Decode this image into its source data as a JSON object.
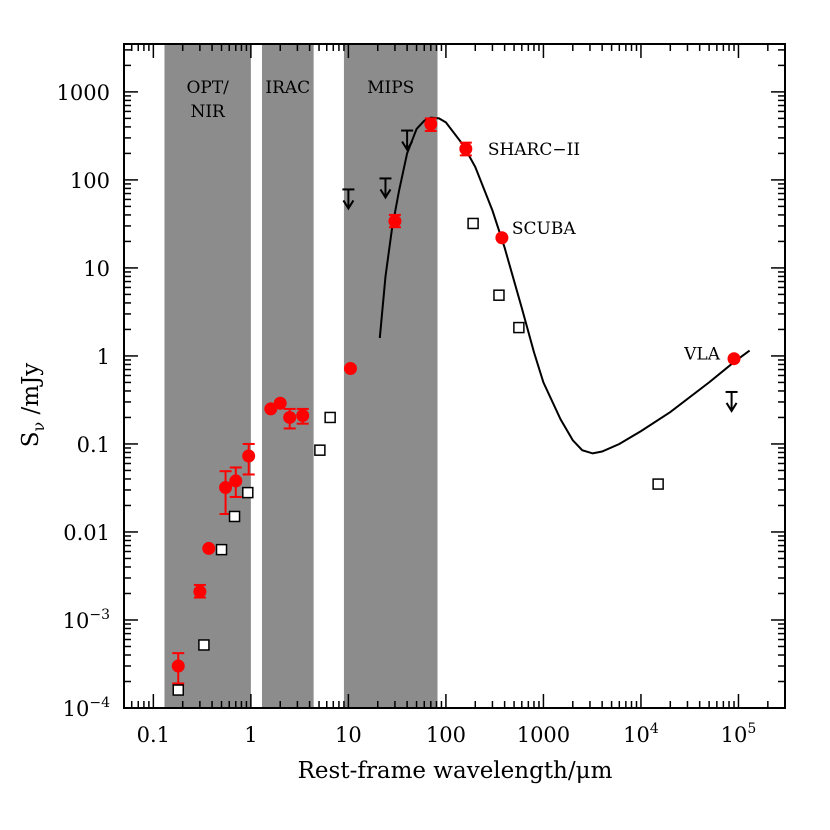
{
  "chart_data": {
    "type": "scatter",
    "x_scale": "log",
    "y_scale": "log",
    "xlim": [
      0.05,
      300000
    ],
    "ylim": [
      0.0001,
      3500
    ],
    "xlabel": "Rest-frame wavelength/μm",
    "ylabel_main": "S",
    "ylabel_sub": "ν",
    "ylabel_rest": " /mJy",
    "x_ticks": [
      {
        "value": 0.1,
        "label": "0.1"
      },
      {
        "value": 1,
        "label": "1"
      },
      {
        "value": 10,
        "label": "10"
      },
      {
        "value": 100,
        "label": "100"
      },
      {
        "value": 1000,
        "label": "1000"
      },
      {
        "value": 10000,
        "base": "10",
        "exp": "4"
      },
      {
        "value": 100000,
        "base": "10",
        "exp": "5"
      }
    ],
    "y_ticks": [
      {
        "value": 0.0001,
        "base": "10",
        "exp": "−4"
      },
      {
        "value": 0.001,
        "base": "10",
        "exp": "−3"
      },
      {
        "value": 0.01,
        "label": "0.01"
      },
      {
        "value": 0.1,
        "label": "0.1"
      },
      {
        "value": 1,
        "label": "1"
      },
      {
        "value": 10,
        "label": "10"
      },
      {
        "value": 100,
        "label": "100"
      },
      {
        "value": 1000,
        "label": "1000"
      }
    ],
    "bands": [
      {
        "label_lines": [
          "OPT/",
          "NIR"
        ],
        "x_from": 0.13,
        "x_to": 1.0
      },
      {
        "label_lines": [
          "IRAC"
        ],
        "x_from": 1.3,
        "x_to": 4.4
      },
      {
        "label_lines": [
          "MIPS"
        ],
        "x_from": 9.0,
        "x_to": 82
      }
    ],
    "band_color": "#8c8c8c",
    "series": [
      {
        "marker": "filled-circle",
        "color": "#ff0000",
        "points": [
          {
            "x": 0.18,
            "y": 0.0003,
            "lo": 0.00019,
            "hi": 0.00042
          },
          {
            "x": 0.3,
            "y": 0.0021,
            "lo": 0.0018,
            "hi": 0.0025
          },
          {
            "x": 0.37,
            "y": 0.0065
          },
          {
            "x": 0.55,
            "y": 0.032,
            "lo": 0.016,
            "hi": 0.049
          },
          {
            "x": 0.7,
            "y": 0.038,
            "lo": 0.025,
            "hi": 0.054
          },
          {
            "x": 0.95,
            "y": 0.073,
            "lo": 0.045,
            "hi": 0.1
          },
          {
            "x": 1.6,
            "y": 0.25
          },
          {
            "x": 2.0,
            "y": 0.29
          },
          {
            "x": 2.5,
            "y": 0.2,
            "lo": 0.15,
            "hi": 0.25
          },
          {
            "x": 3.4,
            "y": 0.21,
            "lo": 0.17,
            "hi": 0.25
          },
          {
            "x": 10.5,
            "y": 0.72
          },
          {
            "x": 30,
            "y": 34,
            "lo": 29,
            "hi": 40
          },
          {
            "x": 70,
            "y": 430,
            "lo": 360,
            "hi": 500
          },
          {
            "x": 160,
            "y": 225,
            "lo": 190,
            "hi": 265
          },
          {
            "x": 375,
            "y": 22
          },
          {
            "x": 90000,
            "y": 0.93
          }
        ]
      },
      {
        "marker": "open-square",
        "color": "#000000",
        "points": [
          {
            "x": 0.18,
            "y": 0.00016
          },
          {
            "x": 0.33,
            "y": 0.00052
          },
          {
            "x": 0.5,
            "y": 0.0063
          },
          {
            "x": 0.68,
            "y": 0.015
          },
          {
            "x": 0.93,
            "y": 0.028
          },
          {
            "x": 5.1,
            "y": 0.085
          },
          {
            "x": 6.5,
            "y": 0.2
          },
          {
            "x": 190,
            "y": 32
          },
          {
            "x": 350,
            "y": 4.9
          },
          {
            "x": 560,
            "y": 2.1
          },
          {
            "x": 15000,
            "y": 0.035
          }
        ]
      },
      {
        "marker": "upper-limit-arrow",
        "color": "#000000",
        "points": [
          {
            "x": 10,
            "y": 60
          },
          {
            "x": 24,
            "y": 80
          },
          {
            "x": 40,
            "y": 280
          },
          {
            "x": 85000,
            "y": 0.3
          }
        ]
      }
    ],
    "model_curve": [
      {
        "x": 21,
        "y": 1.6
      },
      {
        "x": 24,
        "y": 8
      },
      {
        "x": 28,
        "y": 28
      },
      {
        "x": 33,
        "y": 75
      },
      {
        "x": 40,
        "y": 200
      },
      {
        "x": 50,
        "y": 380
      },
      {
        "x": 60,
        "y": 470
      },
      {
        "x": 70,
        "y": 510
      },
      {
        "x": 85,
        "y": 500
      },
      {
        "x": 100,
        "y": 450
      },
      {
        "x": 150,
        "y": 250
      },
      {
        "x": 200,
        "y": 140
      },
      {
        "x": 300,
        "y": 45
      },
      {
        "x": 400,
        "y": 17
      },
      {
        "x": 600,
        "y": 3.5
      },
      {
        "x": 800,
        "y": 1.1
      },
      {
        "x": 1000,
        "y": 0.5
      },
      {
        "x": 1500,
        "y": 0.19
      },
      {
        "x": 2000,
        "y": 0.11
      },
      {
        "x": 2500,
        "y": 0.085
      },
      {
        "x": 3200,
        "y": 0.078
      },
      {
        "x": 4000,
        "y": 0.082
      },
      {
        "x": 6000,
        "y": 0.1
      },
      {
        "x": 10000,
        "y": 0.14
      },
      {
        "x": 20000,
        "y": 0.23
      },
      {
        "x": 50000,
        "y": 0.5
      },
      {
        "x": 90000,
        "y": 0.85
      },
      {
        "x": 130000,
        "y": 1.15
      }
    ],
    "annotations": [
      {
        "text": "SHARC−II",
        "x": 160,
        "y": 225,
        "side": "right"
      },
      {
        "text": "SCUBA",
        "x": 375,
        "y": 22,
        "side": "right-up"
      },
      {
        "text": "VLA",
        "x": 90000,
        "y": 0.93,
        "side": "left"
      }
    ],
    "grid": false,
    "legend": "none"
  }
}
